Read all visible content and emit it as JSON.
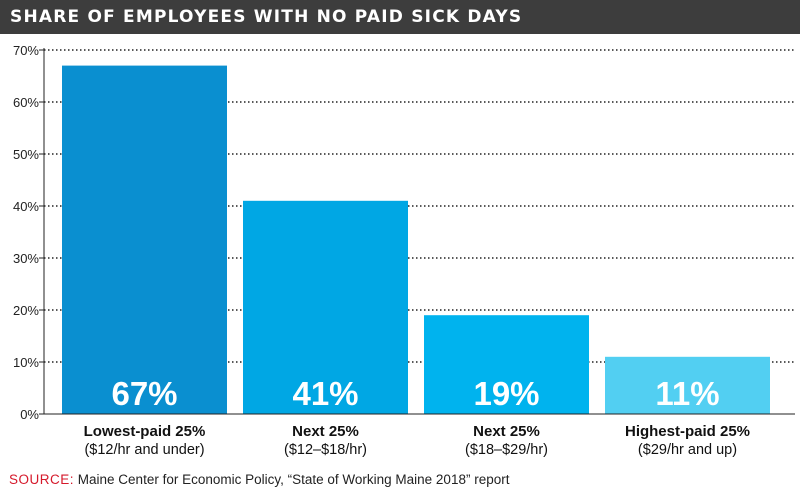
{
  "title": "SHARE OF EMPLOYEES WITH NO PAID SICK DAYS",
  "source": {
    "label": "SOURCE:",
    "text": "Maine Center for Economic Policy, “State of Working Maine 2018” report"
  },
  "colors": {
    "title_bg": "#3d3d3d",
    "source_label": "#d5192b",
    "bars": [
      "#0a8fd0",
      "#00a7e4",
      "#00b3ee",
      "#52cff2"
    ]
  },
  "chart_data": {
    "type": "bar",
    "title": "SHARE OF EMPLOYEES WITH NO PAID SICK DAYS",
    "categories": [
      {
        "name": "Lowest-paid 25%",
        "detail": "($12/hr and under)"
      },
      {
        "name": "Next 25%",
        "detail": "($12–$18/hr)"
      },
      {
        "name": "Next 25%",
        "detail": "($18–$29/hr)"
      },
      {
        "name": "Highest-paid 25%",
        "detail": "($29/hr and up)"
      }
    ],
    "values": [
      67,
      41,
      19,
      11
    ],
    "value_labels": [
      "67%",
      "41%",
      "19%",
      "11%"
    ],
    "ylim": [
      0,
      70
    ],
    "yticks": [
      0,
      10,
      20,
      30,
      40,
      50,
      60,
      70
    ],
    "ytick_labels": [
      "0%",
      "10%",
      "20%",
      "30%",
      "40%",
      "50%",
      "60%",
      "70%"
    ],
    "xlabel": "",
    "ylabel": "",
    "grid": true
  }
}
